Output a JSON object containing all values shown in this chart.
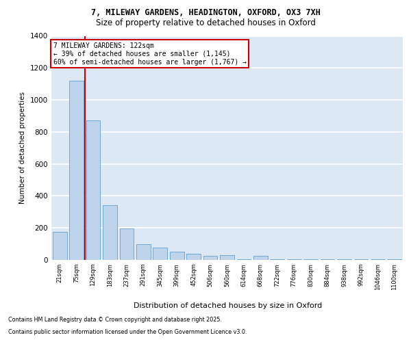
{
  "title_line1": "7, MILEWAY GARDENS, HEADINGTON, OXFORD, OX3 7XH",
  "title_line2": "Size of property relative to detached houses in Oxford",
  "xlabel": "Distribution of detached houses by size in Oxford",
  "ylabel": "Number of detached properties",
  "categories": [
    "21sqm",
    "75sqm",
    "129sqm",
    "183sqm",
    "237sqm",
    "291sqm",
    "345sqm",
    "399sqm",
    "452sqm",
    "506sqm",
    "560sqm",
    "614sqm",
    "668sqm",
    "722sqm",
    "776sqm",
    "830sqm",
    "884sqm",
    "938sqm",
    "992sqm",
    "1046sqm",
    "1100sqm"
  ],
  "values": [
    175,
    1120,
    870,
    340,
    195,
    100,
    75,
    50,
    40,
    25,
    30,
    5,
    25,
    5,
    5,
    5,
    5,
    5,
    5,
    5,
    5
  ],
  "bar_color": "#bed4ea",
  "bar_edge_color": "#6fa8d4",
  "background_color": "#dce9f5",
  "grid_color": "#ffffff",
  "vline_color": "#cc0000",
  "annotation_title": "7 MILEWAY GARDENS: 122sqm",
  "annotation_line1": "← 39% of detached houses are smaller (1,145)",
  "annotation_line2": "60% of semi-detached houses are larger (1,767) →",
  "annotation_box_color": "#cc0000",
  "footnote_line1": "Contains HM Land Registry data © Crown copyright and database right 2025.",
  "footnote_line2": "Contains public sector information licensed under the Open Government Licence v3.0.",
  "ylim": [
    0,
    1400
  ],
  "yticks": [
    0,
    200,
    400,
    600,
    800,
    1000,
    1200,
    1400
  ]
}
